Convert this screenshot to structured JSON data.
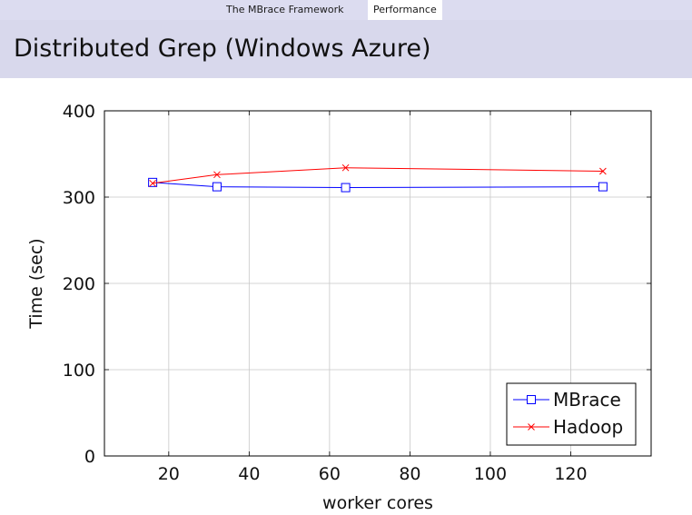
{
  "navbar": {
    "items": [
      {
        "label": "The MBrace Framework",
        "active": false
      },
      {
        "label": "Performance",
        "active": true
      }
    ]
  },
  "slide": {
    "title": "Distributed Grep (Windows Azure)"
  },
  "chart_data": {
    "type": "line",
    "title": "",
    "xlabel": "worker cores",
    "ylabel": "Time (sec)",
    "xlim": [
      4,
      140
    ],
    "ylim": [
      0,
      400
    ],
    "xticks": [
      20,
      40,
      60,
      80,
      100,
      120
    ],
    "yticks": [
      0,
      100,
      200,
      300,
      400
    ],
    "grid": true,
    "legend_position": "bottom-right",
    "series": [
      {
        "name": "MBrace",
        "color": "#0000ff",
        "marker": "square",
        "x": [
          16,
          32,
          64,
          128
        ],
        "y": [
          317,
          312,
          311,
          312
        ]
      },
      {
        "name": "Hadoop",
        "color": "#ff0000",
        "marker": "x",
        "x": [
          16,
          32,
          64,
          128
        ],
        "y": [
          316,
          326,
          334,
          330
        ]
      }
    ]
  }
}
